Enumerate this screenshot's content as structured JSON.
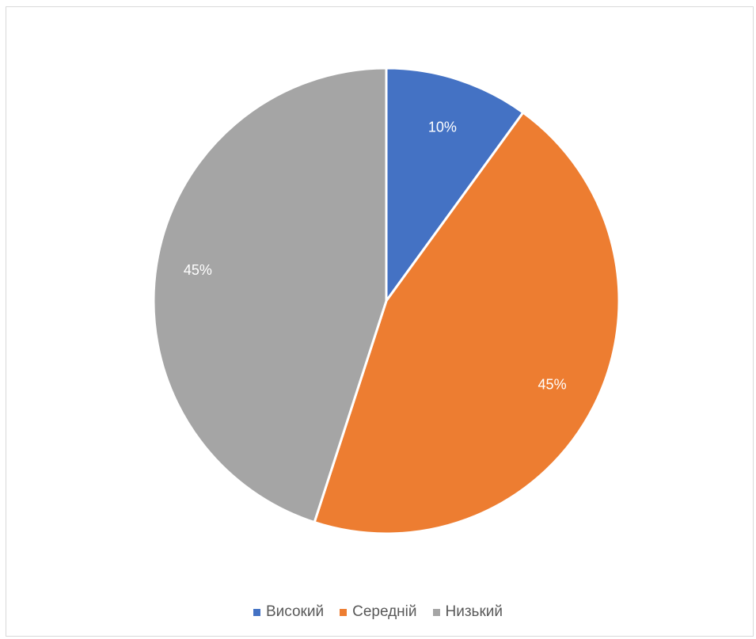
{
  "chart_data": {
    "type": "pie",
    "title": "",
    "categories": [
      "Високий",
      "Середній",
      "Низький"
    ],
    "values": [
      10,
      45,
      45
    ],
    "labels": [
      "10%",
      "45%",
      "45%"
    ],
    "colors": [
      "#4472C4",
      "#ED7D31",
      "#A5A5A5"
    ],
    "start_angle_deg": 0,
    "direction": "clockwise",
    "legend_position": "bottom"
  }
}
